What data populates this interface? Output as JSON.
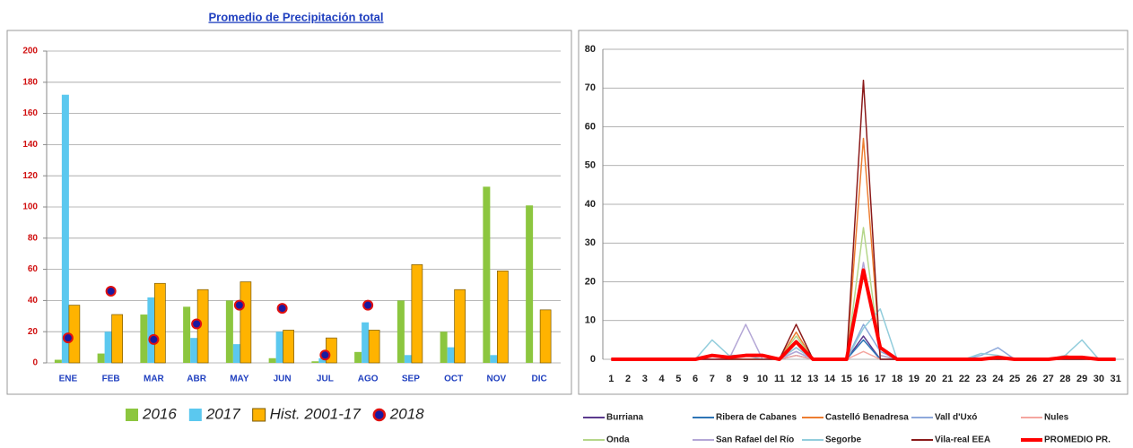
{
  "chart_data": [
    {
      "type": "bar",
      "title": "Promedio de Precipitación total",
      "categories": [
        "ENE",
        "FEB",
        "MAR",
        "ABR",
        "MAY",
        "JUN",
        "JUL",
        "AGO",
        "SEP",
        "OCT",
        "NOV",
        "DIC"
      ],
      "series": [
        {
          "name": "2016",
          "color": "#8cc63f",
          "values": [
            2,
            6,
            31,
            36,
            40,
            3,
            1,
            7,
            40,
            20,
            113,
            101
          ]
        },
        {
          "name": "2017",
          "color": "#5bc8ef",
          "values": [
            172,
            20,
            42,
            16,
            12,
            20,
            3,
            26,
            5,
            10,
            5,
            0
          ]
        },
        {
          "name": "Hist. 2001-17",
          "color": "#ffb300",
          "values": [
            37,
            31,
            51,
            47,
            52,
            21,
            16,
            21,
            63,
            47,
            59,
            34
          ]
        },
        {
          "name": "2018",
          "type": "scatter",
          "color": "#1a1aa0",
          "values": [
            16,
            46,
            15,
            25,
            37,
            35,
            5,
            37,
            null,
            null,
            null,
            null
          ]
        }
      ],
      "ylim": [
        0,
        200
      ],
      "yticks": [
        0,
        20,
        40,
        60,
        80,
        100,
        120,
        140,
        160,
        180,
        200
      ],
      "grid": true
    },
    {
      "type": "line",
      "x": [
        1,
        2,
        3,
        4,
        5,
        6,
        7,
        8,
        9,
        10,
        11,
        12,
        13,
        14,
        15,
        16,
        17,
        18,
        19,
        20,
        21,
        22,
        23,
        24,
        25,
        26,
        27,
        28,
        29,
        30,
        31
      ],
      "xlim": [
        0.5,
        31.5
      ],
      "series": [
        {
          "name": "Burriana",
          "color": "#5b3a8e",
          "values": [
            0,
            0,
            0,
            0,
            0,
            0,
            0,
            0,
            0,
            0,
            0,
            3,
            0,
            0,
            0,
            6,
            0,
            0,
            0,
            0,
            0,
            0,
            0,
            0,
            0,
            0,
            0,
            0,
            0,
            0,
            0
          ]
        },
        {
          "name": "Ribera de Cabanes",
          "color": "#2e75b6",
          "values": [
            0,
            0,
            0,
            0,
            0,
            0,
            0,
            0,
            0,
            0,
            0,
            1,
            0,
            0,
            0,
            5,
            0,
            0,
            0,
            0,
            0,
            0,
            0,
            0,
            0,
            0,
            0,
            0,
            0,
            0,
            0
          ]
        },
        {
          "name": "Castelló Benadresa",
          "color": "#ed7d31",
          "values": [
            0,
            0,
            0,
            0,
            0,
            0,
            1,
            0,
            0,
            0,
            0,
            7,
            0,
            0,
            0,
            57,
            1,
            0,
            0,
            0,
            0,
            0,
            0,
            0,
            0,
            0,
            0,
            1,
            0,
            0,
            0
          ]
        },
        {
          "name": "Vall d'Uxó",
          "color": "#8ea9db",
          "values": [
            0,
            0,
            0,
            0,
            0,
            0,
            0,
            0,
            0,
            0,
            0,
            2,
            0,
            0,
            0,
            9,
            2,
            0,
            0,
            0,
            0,
            0,
            1,
            3,
            0,
            0,
            0,
            0,
            0,
            0,
            0
          ]
        },
        {
          "name": "Nules",
          "color": "#f4a6a0",
          "values": [
            0,
            0,
            0,
            0,
            0,
            0,
            0,
            0,
            0,
            0,
            0,
            1,
            0,
            0,
            0,
            2,
            0,
            0,
            0,
            0,
            0,
            0,
            0,
            0,
            0,
            0,
            0,
            0,
            0,
            0,
            0
          ]
        },
        {
          "name": "Onda",
          "color": "#b5d68a",
          "values": [
            0,
            0,
            0,
            0,
            0,
            0,
            1,
            0,
            0,
            0,
            0,
            6,
            0,
            0,
            0,
            34,
            1,
            0,
            0,
            0,
            0,
            0,
            0,
            0,
            0,
            0,
            0,
            0,
            0,
            0,
            0
          ]
        },
        {
          "name": "San Rafael  del Río",
          "color": "#b4a7d6",
          "values": [
            0,
            0,
            0,
            0,
            0,
            0,
            0,
            0,
            9,
            0,
            0,
            2,
            0,
            0,
            0,
            25,
            1,
            0,
            0,
            0,
            0,
            0,
            0,
            0,
            0,
            0,
            0,
            0,
            0,
            0,
            0
          ]
        },
        {
          "name": "Segorbe",
          "color": "#92cddc",
          "values": [
            0,
            0,
            0,
            0,
            0,
            0,
            5,
            1,
            1,
            0,
            0,
            3,
            0,
            0,
            0,
            8,
            13,
            0,
            0,
            0,
            0,
            0,
            1.5,
            1,
            0,
            0,
            0,
            1,
            5,
            0,
            0
          ]
        },
        {
          "name": "Vila-real EEA",
          "color": "#8b1a1a",
          "values": [
            0,
            0,
            0,
            0,
            0,
            0,
            0,
            0,
            0,
            0,
            0,
            9,
            0,
            0,
            0,
            72,
            0,
            0,
            0,
            0,
            0,
            0,
            0,
            0,
            0,
            0,
            0,
            0,
            0,
            0,
            0
          ]
        },
        {
          "name": "PROMEDIO PR.",
          "color": "#ff0000",
          "width": 4,
          "values": [
            0,
            0,
            0,
            0,
            0,
            0,
            1,
            0.5,
            1,
            1,
            0,
            4.5,
            0,
            0,
            0,
            23,
            3,
            0,
            0,
            0,
            0,
            0,
            0,
            0.5,
            0,
            0,
            0,
            0.5,
            0.5,
            0,
            0
          ]
        }
      ],
      "ylim": [
        0,
        80
      ],
      "yticks": [
        0,
        10,
        20,
        30,
        40,
        50,
        60,
        70,
        80
      ],
      "grid": true
    }
  ]
}
